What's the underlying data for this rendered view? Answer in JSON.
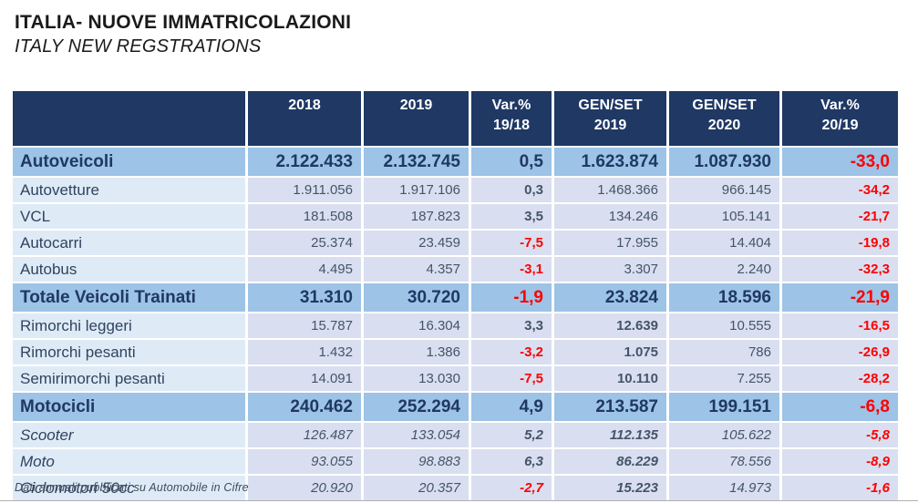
{
  "page": {
    "title": "ITALIA- NUOVE IMMATRICOLAZIONI",
    "subtitle": "ITALY NEW REGSTRATIONS",
    "footnote": "Dati annuali pubblicati su Automobile in Cifre"
  },
  "colors": {
    "header_bg": "#1F3864",
    "header_text": "#FFFFFF",
    "section_bg": "#9DC3E6",
    "label_bg": "#DEEBF7",
    "value_bg": "#D9DFF0",
    "label_text": "#31435F",
    "body_text": "#44546A",
    "strong_text": "#1F3864",
    "negative_text": "#FF0000"
  },
  "table": {
    "columns": [
      {
        "lines": [
          "2018"
        ]
      },
      {
        "lines": [
          "2019"
        ]
      },
      {
        "lines": [
          "Var.%",
          "19/18"
        ]
      },
      {
        "lines": [
          "GEN/SET",
          "2019"
        ]
      },
      {
        "lines": [
          "GEN/SET",
          "2020"
        ]
      },
      {
        "lines": [
          "Var.%",
          "20/19"
        ]
      }
    ],
    "rows": [
      {
        "label": "Autoveicoli",
        "type": "section",
        "italic": false,
        "values": [
          "2.122.433",
          "2.132.745",
          "0,5",
          "1.623.874",
          "1.087.930",
          "-33,0"
        ],
        "bold_cols": [
          0,
          1,
          2,
          3,
          4,
          5
        ]
      },
      {
        "label": "Autovetture",
        "type": "sub",
        "italic": false,
        "values": [
          "1.911.056",
          "1.917.106",
          "0,3",
          "1.468.366",
          "966.145",
          "-34,2"
        ],
        "bold_cols": [
          2,
          5
        ]
      },
      {
        "label": "VCL",
        "type": "sub",
        "italic": false,
        "values": [
          "181.508",
          "187.823",
          "3,5",
          "134.246",
          "105.141",
          "-21,7"
        ],
        "bold_cols": [
          2,
          5
        ]
      },
      {
        "label": "Autocarri",
        "type": "sub",
        "italic": false,
        "values": [
          "25.374",
          "23.459",
          "-7,5",
          "17.955",
          "14.404",
          "-19,8"
        ],
        "bold_cols": [
          2,
          5
        ]
      },
      {
        "label": "Autobus",
        "type": "sub",
        "italic": false,
        "values": [
          "4.495",
          "4.357",
          "-3,1",
          "3.307",
          "2.240",
          "-32,3"
        ],
        "bold_cols": [
          2,
          5
        ]
      },
      {
        "label": "Totale Veicoli Trainati",
        "type": "section",
        "italic": false,
        "values": [
          "31.310",
          "30.720",
          "-1,9",
          "23.824",
          "18.596",
          "-21,9"
        ],
        "bold_cols": [
          0,
          1,
          2,
          3,
          4,
          5
        ]
      },
      {
        "label": "Rimorchi leggeri",
        "type": "sub",
        "italic": false,
        "values": [
          "15.787",
          "16.304",
          "3,3",
          "12.639",
          "10.555",
          "-16,5"
        ],
        "bold_cols": [
          2,
          3,
          5
        ]
      },
      {
        "label": "Rimorchi pesanti",
        "type": "sub",
        "italic": false,
        "values": [
          "1.432",
          "1.386",
          "-3,2",
          "1.075",
          "786",
          "-26,9"
        ],
        "bold_cols": [
          2,
          3,
          5
        ]
      },
      {
        "label": "Semirimorchi pesanti",
        "type": "sub",
        "italic": false,
        "values": [
          "14.091",
          "13.030",
          "-7,5",
          "10.110",
          "7.255",
          "-28,2"
        ],
        "bold_cols": [
          2,
          3,
          5
        ]
      },
      {
        "label": "Motocicli",
        "type": "section",
        "italic": false,
        "values": [
          "240.462",
          "252.294",
          "4,9",
          "213.587",
          "199.151",
          "-6,8"
        ],
        "bold_cols": [
          0,
          1,
          2,
          3,
          4,
          5
        ]
      },
      {
        "label": "Scooter",
        "type": "sub",
        "italic": true,
        "values": [
          "126.487",
          "133.054",
          "5,2",
          "112.135",
          "105.622",
          "-5,8"
        ],
        "bold_cols": [
          2,
          3,
          5
        ]
      },
      {
        "label": "Moto",
        "type": "sub",
        "italic": true,
        "values": [
          "93.055",
          "98.883",
          "6,3",
          "86.229",
          "78.556",
          "-8,9"
        ],
        "bold_cols": [
          2,
          3,
          5
        ]
      },
      {
        "label": "Ciclomotori 50cc",
        "type": "sub",
        "italic": true,
        "values": [
          "20.920",
          "20.357",
          "-2,7",
          "15.223",
          "14.973",
          "-1,6"
        ],
        "bold_cols": [
          2,
          3,
          5
        ]
      }
    ]
  }
}
